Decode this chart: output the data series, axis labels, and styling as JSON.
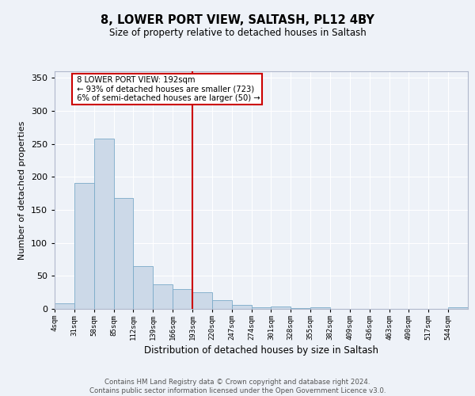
{
  "title": "8, LOWER PORT VIEW, SALTASH, PL12 4BY",
  "subtitle": "Size of property relative to detached houses in Saltash",
  "xlabel": "Distribution of detached houses by size in Saltash",
  "ylabel": "Number of detached properties",
  "bar_color": "#ccd9e8",
  "bar_edge_color": "#7aaac8",
  "background_color": "#eef2f8",
  "grid_color": "#ffffff",
  "categories": [
    "4sqm",
    "31sqm",
    "58sqm",
    "85sqm",
    "112sqm",
    "139sqm",
    "166sqm",
    "193sqm",
    "220sqm",
    "247sqm",
    "274sqm",
    "301sqm",
    "328sqm",
    "355sqm",
    "382sqm",
    "409sqm",
    "436sqm",
    "463sqm",
    "490sqm",
    "517sqm",
    "544sqm"
  ],
  "bar_values": [
    8,
    191,
    258,
    168,
    65,
    37,
    30,
    25,
    13,
    6,
    2,
    4,
    1,
    2,
    0,
    0,
    0,
    0,
    0,
    0,
    2
  ],
  "property_label": "8 LOWER PORT VIEW: 192sqm",
  "pct_smaller": 93,
  "n_smaller": 723,
  "pct_larger_semi": 6,
  "n_larger_semi": 50,
  "vline_color": "#cc0000",
  "annotation_box_color": "#cc0000",
  "footer": "Contains HM Land Registry data © Crown copyright and database right 2024.\nContains public sector information licensed under the Open Government Licence v3.0.",
  "ylim": [
    0,
    360
  ],
  "yticks": [
    0,
    50,
    100,
    150,
    200,
    250,
    300,
    350
  ]
}
